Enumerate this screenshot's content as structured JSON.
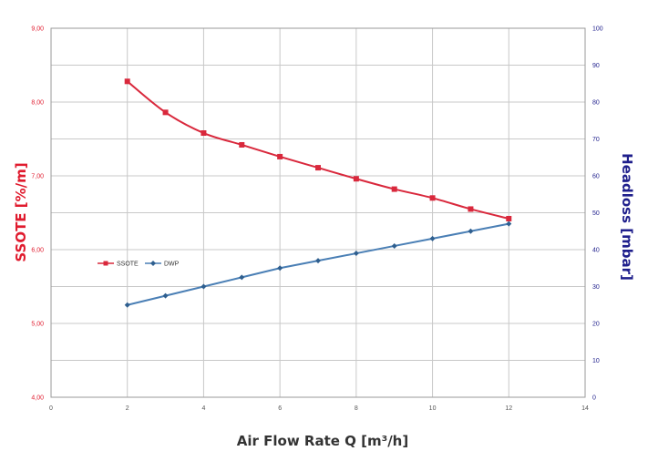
{
  "chart_data": {
    "type": "line",
    "xlabel": "Air Flow Rate Q [m³/h]",
    "ylabel_left": "SSOTE [%/m]",
    "ylabel_right": "Headloss [mbar]",
    "xlim": [
      0,
      14
    ],
    "ylim_left": [
      4,
      9
    ],
    "ylim_right": [
      0,
      100
    ],
    "x_ticks": [
      "0",
      "2",
      "4",
      "6",
      "8",
      "10",
      "12",
      "14"
    ],
    "y_left_ticks": [
      "4,00",
      "5,00",
      "6,00",
      "7,00",
      "8,00",
      "9,00"
    ],
    "y_right_ticks": [
      "0",
      "10",
      "20",
      "30",
      "40",
      "50",
      "60",
      "70",
      "80",
      "90",
      "100"
    ],
    "grid": true,
    "legend_placement": "middle-left",
    "series": [
      {
        "name": "SSOTE",
        "axis": "left",
        "color": "#d9283c",
        "marker": "square",
        "x": [
          2,
          3,
          4,
          5,
          6,
          7,
          8,
          9,
          10,
          11,
          12
        ],
        "values": [
          8.28,
          7.86,
          7.58,
          7.42,
          7.26,
          7.11,
          6.96,
          6.82,
          6.7,
          6.55,
          6.42
        ]
      },
      {
        "name": "DWP",
        "axis": "right",
        "color": "#4a7fb5",
        "marker": "diamond",
        "x": [
          2,
          3,
          4,
          5,
          6,
          7,
          8,
          9,
          10,
          11,
          12
        ],
        "values": [
          25.0,
          27.5,
          30.0,
          32.5,
          35.0,
          37.0,
          39.0,
          41.0,
          43.0,
          45.0,
          47.0
        ]
      }
    ]
  }
}
